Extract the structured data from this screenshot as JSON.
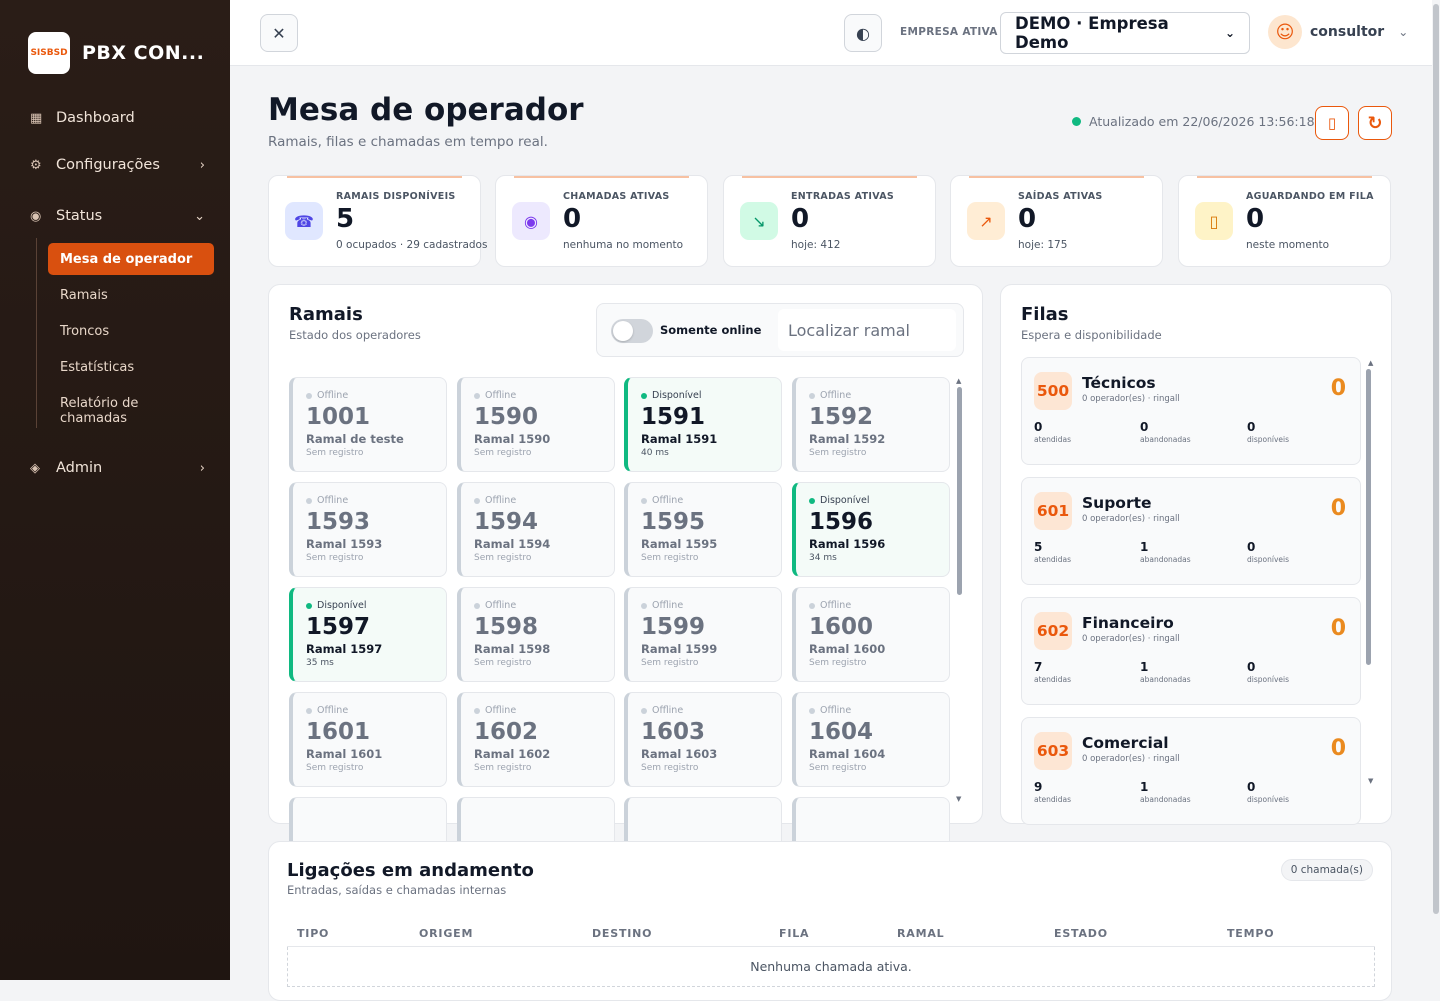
{
  "brand": {
    "logo_text": "SISBSD",
    "name": "PBX CON..."
  },
  "sidebar": {
    "items": [
      {
        "label": "Dashboard",
        "icon": "grid-icon"
      },
      {
        "label": "Configurações",
        "icon": "gear-icon"
      },
      {
        "label": "Status",
        "icon": "radio-icon"
      },
      {
        "label": "Admin",
        "icon": "diamond-icon"
      }
    ],
    "status_children": [
      {
        "label": "Mesa de operador"
      },
      {
        "label": "Ramais"
      },
      {
        "label": "Troncos"
      },
      {
        "label": "Estatísticas"
      },
      {
        "label": "Relatório de chamadas"
      }
    ]
  },
  "topbar": {
    "close_icon": "✕",
    "theme_icon": "◐",
    "empresa_label": "EMPRESA ATIVA",
    "empresa_value": "DEMO · Empresa Demo",
    "user_name": "consultor"
  },
  "header": {
    "title": "Mesa de operador",
    "subtitle": "Ramais, filas e chamadas em tempo real.",
    "updated": "Atualizado em 22/06/2026 13:56:18"
  },
  "stats": [
    {
      "label": "RAMAIS DISPONÍVEIS",
      "value": "5",
      "sub": "0 ocupados · 29 cadastrados",
      "icon": "☎",
      "bg": "#e0e7ff",
      "fg": "#4f46e5"
    },
    {
      "label": "CHAMADAS ATIVAS",
      "value": "0",
      "sub": "nenhuma no momento",
      "icon": "◉",
      "bg": "#ede9fe",
      "fg": "#7c3aed"
    },
    {
      "label": "ENTRADAS ATIVAS",
      "value": "0",
      "sub": "hoje: 412",
      "icon": "↘",
      "bg": "#d1fae5",
      "fg": "#059669"
    },
    {
      "label": "SAÍDAS ATIVAS",
      "value": "0",
      "sub": "hoje: 175",
      "icon": "↗",
      "bg": "#ffedd5",
      "fg": "#ea580c"
    },
    {
      "label": "AGUARDANDO EM FILA",
      "value": "0",
      "sub": "neste momento",
      "icon": "▯",
      "bg": "#fef3c7",
      "fg": "#d97706"
    }
  ],
  "ramais": {
    "title": "Ramais",
    "subtitle": "Estado dos operadores",
    "toggle_label": "Somente online",
    "search_placeholder": "Localizar ramal",
    "items": [
      {
        "status": "Offline",
        "num": "1001",
        "name": "Ramal de teste",
        "sub": "Sem registro",
        "online": false
      },
      {
        "status": "Offline",
        "num": "1590",
        "name": "Ramal 1590",
        "sub": "Sem registro",
        "online": false
      },
      {
        "status": "Disponível",
        "num": "1591",
        "name": "Ramal 1591",
        "sub": "40 ms",
        "online": true
      },
      {
        "status": "Offline",
        "num": "1592",
        "name": "Ramal 1592",
        "sub": "Sem registro",
        "online": false
      },
      {
        "status": "Offline",
        "num": "1593",
        "name": "Ramal 1593",
        "sub": "Sem registro",
        "online": false
      },
      {
        "status": "Offline",
        "num": "1594",
        "name": "Ramal 1594",
        "sub": "Sem registro",
        "online": false
      },
      {
        "status": "Offline",
        "num": "1595",
        "name": "Ramal 1595",
        "sub": "Sem registro",
        "online": false
      },
      {
        "status": "Disponível",
        "num": "1596",
        "name": "Ramal 1596",
        "sub": "34 ms",
        "online": true
      },
      {
        "status": "Disponível",
        "num": "1597",
        "name": "Ramal 1597",
        "sub": "35 ms",
        "online": true
      },
      {
        "status": "Offline",
        "num": "1598",
        "name": "Ramal 1598",
        "sub": "Sem registro",
        "online": false
      },
      {
        "status": "Offline",
        "num": "1599",
        "name": "Ramal 1599",
        "sub": "Sem registro",
        "online": false
      },
      {
        "status": "Offline",
        "num": "1600",
        "name": "Ramal 1600",
        "sub": "Sem registro",
        "online": false
      },
      {
        "status": "Offline",
        "num": "1601",
        "name": "Ramal 1601",
        "sub": "Sem registro",
        "online": false
      },
      {
        "status": "Offline",
        "num": "1602",
        "name": "Ramal 1602",
        "sub": "Sem registro",
        "online": false
      },
      {
        "status": "Offline",
        "num": "1603",
        "name": "Ramal 1603",
        "sub": "Sem registro",
        "online": false
      },
      {
        "status": "Offline",
        "num": "1604",
        "name": "Ramal 1604",
        "sub": "Sem registro",
        "online": false
      }
    ]
  },
  "filas": {
    "title": "Filas",
    "subtitle": "Espera e disponibilidade",
    "items": [
      {
        "num": "500",
        "name": "Técnicos",
        "meta": "0 operador(es) · ringall",
        "count": "0",
        "atendidas": "0",
        "abandonadas": "0",
        "disponiveis": "0"
      },
      {
        "num": "601",
        "name": "Suporte",
        "meta": "0 operador(es) · ringall",
        "count": "0",
        "atendidas": "5",
        "abandonadas": "1",
        "disponiveis": "0"
      },
      {
        "num": "602",
        "name": "Financeiro",
        "meta": "0 operador(es) · ringall",
        "count": "0",
        "atendidas": "7",
        "abandonadas": "1",
        "disponiveis": "0"
      },
      {
        "num": "603",
        "name": "Comercial",
        "meta": "0 operador(es) · ringall",
        "count": "0",
        "atendidas": "9",
        "abandonadas": "1",
        "disponiveis": "0"
      }
    ],
    "labels": {
      "atendidas": "atendidas",
      "abandonadas": "abandonadas",
      "disponiveis": "disponíveis"
    }
  },
  "calls": {
    "title": "Ligações em andamento",
    "subtitle": "Entradas, saídas e chamadas internas",
    "badge": "0 chamada(s)",
    "columns": [
      "TIPO",
      "ORIGEM",
      "DESTINO",
      "FILA",
      "RAMAL",
      "ESTADO",
      "TEMPO"
    ],
    "empty": "Nenhuma chamada ativa."
  }
}
